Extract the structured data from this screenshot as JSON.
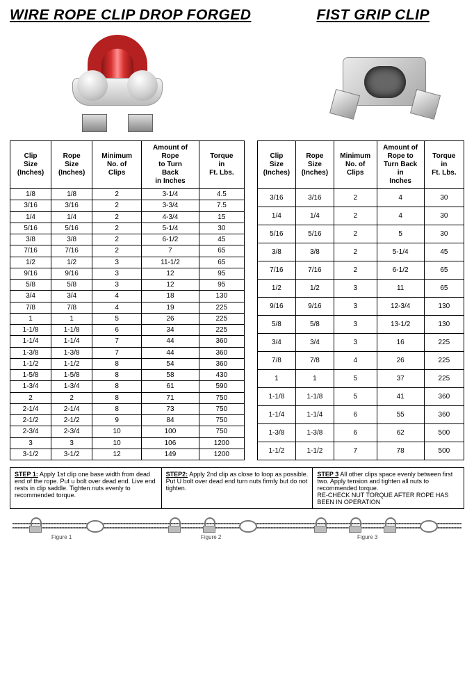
{
  "titles": {
    "left": "WIRE ROPE CLIP DROP FORGED",
    "right": "FIST GRIP CLIP"
  },
  "headers": [
    "Clip\nSize\n(Inches)",
    "Rope\nSize\n(Inches)",
    "Minimum\nNo. of\nClips",
    "Amount of\nRope\nto Turn\nBack\nin Inches",
    "Torque\nin\nFt. Lbs."
  ],
  "headers2": [
    "Clip\nSize\n(Inches)",
    "Rope\nSize\n(Inches)",
    "Minimum\nNo. of\nClips",
    "Amount of\nRope to\nTurn Back\nin\nInches",
    "Torque\nin\nFt. Lbs."
  ],
  "table1": [
    [
      "1/8",
      "1/8",
      "2",
      "3-1/4",
      "4.5"
    ],
    [
      "3/16",
      "3/16",
      "2",
      "3-3/4",
      "7.5"
    ],
    [
      "1/4",
      "1/4",
      "2",
      "4-3/4",
      "15"
    ],
    [
      "5/16",
      "5/16",
      "2",
      "5-1/4",
      "30"
    ],
    [
      "3/8",
      "3/8",
      "2",
      "6-1/2",
      "45"
    ],
    [
      "7/16",
      "7/16",
      "2",
      "7",
      "65"
    ],
    [
      "1/2",
      "1/2",
      "3",
      "11-1/2",
      "65"
    ],
    [
      "9/16",
      "9/16",
      "3",
      "12",
      "95"
    ],
    [
      "5/8",
      "5/8",
      "3",
      "12",
      "95"
    ],
    [
      "3/4",
      "3/4",
      "4",
      "18",
      "130"
    ],
    [
      "7/8",
      "7/8",
      "4",
      "19",
      "225"
    ],
    [
      "1",
      "1",
      "5",
      "26",
      "225"
    ],
    [
      "1-1/8",
      "1-1/8",
      "6",
      "34",
      "225"
    ],
    [
      "1-1/4",
      "1-1/4",
      "7",
      "44",
      "360"
    ],
    [
      "1-3/8",
      "1-3/8",
      "7",
      "44",
      "360"
    ],
    [
      "1-1/2",
      "1-1/2",
      "8",
      "54",
      "360"
    ],
    [
      "1-5/8",
      "1-5/8",
      "8",
      "58",
      "430"
    ],
    [
      "1-3/4",
      "1-3/4",
      "8",
      "61",
      "590"
    ],
    [
      "2",
      "2",
      "8",
      "71",
      "750"
    ],
    [
      "2-1/4",
      "2-1/4",
      "8",
      "73",
      "750"
    ],
    [
      "2-1/2",
      "2-1/2",
      "9",
      "84",
      "750"
    ],
    [
      "2-3/4",
      "2-3/4",
      "10",
      "100",
      "750"
    ],
    [
      "3",
      "3",
      "10",
      "106",
      "1200"
    ],
    [
      "3-1/2",
      "3-1/2",
      "12",
      "149",
      "1200"
    ]
  ],
  "table2": [
    [
      "3/16",
      "3/16",
      "2",
      "4",
      "30"
    ],
    [
      "1/4",
      "1/4",
      "2",
      "4",
      "30"
    ],
    [
      "5/16",
      "5/16",
      "2",
      "5",
      "30"
    ],
    [
      "3/8",
      "3/8",
      "2",
      "5-1/4",
      "45"
    ],
    [
      "7/16",
      "7/16",
      "2",
      "6-1/2",
      "65"
    ],
    [
      "1/2",
      "1/2",
      "3",
      "11",
      "65"
    ],
    [
      "9/16",
      "9/16",
      "3",
      "12-3/4",
      "130"
    ],
    [
      "5/8",
      "5/8",
      "3",
      "13-1/2",
      "130"
    ],
    [
      "3/4",
      "3/4",
      "3",
      "16",
      "225"
    ],
    [
      "7/8",
      "7/8",
      "4",
      "26",
      "225"
    ],
    [
      "1",
      "1",
      "5",
      "37",
      "225"
    ],
    [
      "1-1/8",
      "1-1/8",
      "5",
      "41",
      "360"
    ],
    [
      "1-1/4",
      "1-1/4",
      "6",
      "55",
      "360"
    ],
    [
      "1-3/8",
      "1-3/8",
      "6",
      "62",
      "500"
    ],
    [
      "1-1/2",
      "1-1/2",
      "7",
      "78",
      "500"
    ]
  ],
  "steps": [
    {
      "t": "STEP 1:",
      "d": "Apply 1st clip one base width from dead end of the rope. Put u bolt over dead end. Live end rests in clip saddle. Tighten nuts evenly to recommended torque."
    },
    {
      "t": "STEP2:",
      "d": "Apply 2nd clip as close to loop as possible. Put U bolt over dead end turn nuts firmly but do not tighten."
    },
    {
      "t": "STEP 3",
      "d": "All other clips space evenly between first two. Apply tension and tighten all nuts to recommended torque.\nRE-CHECK NUT TORQUE AFTER ROPE HAS BEEN IN OPERATION"
    }
  ],
  "figlabels": [
    "Figure 1",
    "Figure 2",
    "Figure 3"
  ],
  "col_widths": {
    "t1": [
      50,
      50,
      60,
      70,
      55
    ],
    "t2": [
      50,
      50,
      56,
      62,
      52
    ]
  }
}
